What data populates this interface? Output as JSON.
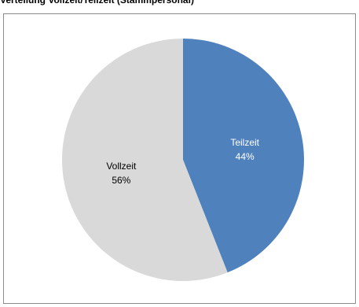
{
  "chart_data": {
    "type": "pie",
    "title": "Verteilung Vollzeit/Teilzeit (Stammpersonal)",
    "slices": [
      {
        "label": "Teilzeit",
        "value": 44,
        "value_label": "44%",
        "color": "#4F81BD"
      },
      {
        "label": "Vollzeit",
        "value": 56,
        "value_label": "56%",
        "color": "#D9D9D9"
      }
    ],
    "start_angle_deg": 0,
    "direction": "clockwise",
    "legend": "none"
  }
}
